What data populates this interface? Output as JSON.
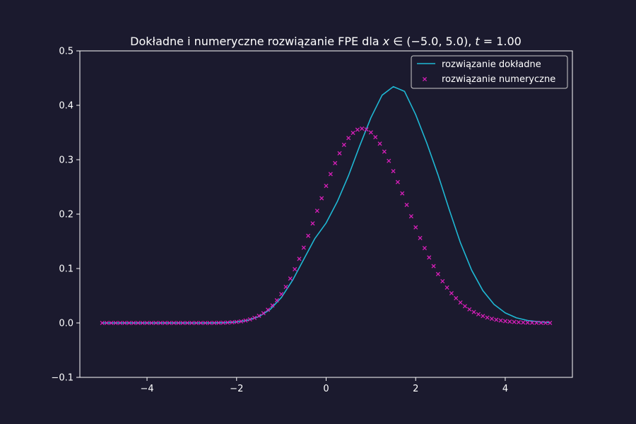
{
  "chart_data": {
    "type": "line",
    "title": "Dokładne i numeryczne rozwiązanie FPE dla x ∈ (−5.0, 5.0), t = 1.00",
    "title_parts": {
      "prefix": "Dokładne i numeryczne rozwiązanie FPE dla ",
      "var_x": "x",
      "mid": " ∈ (−5.0, 5.0), ",
      "var_t": "t",
      "suffix": " = 1.00"
    },
    "xlabel": "",
    "ylabel": "",
    "xlim": [
      -5.5,
      5.5
    ],
    "ylim": [
      -0.1,
      0.5
    ],
    "x_ticks": [
      -4,
      -2,
      0,
      2,
      4
    ],
    "x_tick_labels": [
      "−4",
      "−2",
      "0",
      "2",
      "4"
    ],
    "y_ticks": [
      -0.1,
      0.0,
      0.1,
      0.2,
      0.3,
      0.4,
      0.5
    ],
    "y_tick_labels": [
      "−0.1",
      "0.0",
      "0.1",
      "0.2",
      "0.3",
      "0.4",
      "0.5"
    ],
    "grid": false,
    "legend_position": "top-right",
    "series": [
      {
        "name": "rozwiązanie dokładne",
        "kind": "line",
        "color": "#1fb8d4",
        "x": [
          -5.0,
          -4.75,
          -4.5,
          -4.25,
          -4.0,
          -3.75,
          -3.5,
          -3.25,
          -3.0,
          -2.75,
          -2.5,
          -2.25,
          -2.0,
          -1.75,
          -1.5,
          -1.25,
          -1.0,
          -0.75,
          -0.5,
          -0.25,
          0.0,
          0.25,
          0.5,
          0.75,
          1.0,
          1.25,
          1.5,
          1.75,
          2.0,
          2.25,
          2.5,
          2.75,
          3.0,
          3.25,
          3.5,
          3.75,
          4.0,
          4.25,
          4.5,
          4.75,
          5.0
        ],
        "y": [
          0.0,
          0.0,
          0.0,
          0.0,
          0.0,
          0.0,
          0.0,
          0.0,
          0.0,
          0.0,
          0.0001,
          0.0006,
          0.0018,
          0.0049,
          0.0117,
          0.0248,
          0.0467,
          0.0783,
          0.1169,
          0.1553,
          0.1837,
          0.223,
          0.2708,
          0.3254,
          0.3772,
          0.4186,
          0.4343,
          0.4257,
          0.3829,
          0.3302,
          0.272,
          0.2081,
          0.1473,
          0.097,
          0.0595,
          0.0341,
          0.0185,
          0.0094,
          0.0045,
          0.002,
          0.0008
        ]
      },
      {
        "name": "rozwiązanie numeryczne",
        "kind": "scatter",
        "marker": "x",
        "color": "#d61fb8",
        "x": [
          -5.0,
          -4.9,
          -4.8,
          -4.7,
          -4.6,
          -4.5,
          -4.4,
          -4.3,
          -4.2,
          -4.1,
          -4.0,
          -3.9,
          -3.8,
          -3.7,
          -3.6,
          -3.5,
          -3.4,
          -3.3,
          -3.2,
          -3.1,
          -3.0,
          -2.9,
          -2.8,
          -2.7,
          -2.6,
          -2.5,
          -2.4,
          -2.3,
          -2.2,
          -2.1,
          -2.0,
          -1.9,
          -1.8,
          -1.7,
          -1.6,
          -1.5,
          -1.4,
          -1.3,
          -1.2,
          -1.1,
          -1.0,
          -0.9,
          -0.8,
          -0.7,
          -0.6,
          -0.5,
          -0.4,
          -0.3,
          -0.2,
          -0.1,
          0.0,
          0.1,
          0.2,
          0.3,
          0.4,
          0.5,
          0.6,
          0.7,
          0.8,
          0.9,
          1.0,
          1.1,
          1.2,
          1.3,
          1.4,
          1.5,
          1.6,
          1.7,
          1.8,
          1.9,
          2.0,
          2.1,
          2.2,
          2.3,
          2.4,
          2.5,
          2.6,
          2.7,
          2.8,
          2.9,
          3.0,
          3.1,
          3.2,
          3.3,
          3.4,
          3.5,
          3.6,
          3.7,
          3.8,
          3.9,
          4.0,
          4.1,
          4.2,
          4.3,
          4.4,
          4.5,
          4.6,
          4.7,
          4.8,
          4.9,
          5.0
        ],
        "y": [
          0.0,
          0.0,
          0.0,
          0.0,
          0.0,
          0.0,
          0.0,
          0.0,
          0.0,
          0.0,
          0.0,
          0.0,
          0.0,
          0.0,
          0.0,
          0.0,
          0.0,
          0.0,
          0.0,
          0.0,
          0.0,
          0.0,
          0.0,
          0.0,
          0.0,
          0.0001,
          0.0002,
          0.0004,
          0.0007,
          0.0012,
          0.0019,
          0.0029,
          0.0044,
          0.0065,
          0.0093,
          0.0131,
          0.018,
          0.0243,
          0.0321,
          0.0416,
          0.053,
          0.0663,
          0.0816,
          0.0988,
          0.1178,
          0.1384,
          0.1602,
          0.1829,
          0.2061,
          0.2292,
          0.2519,
          0.2736,
          0.2937,
          0.3118,
          0.3273,
          0.3399,
          0.3493,
          0.3551,
          0.3572,
          0.3556,
          0.3502,
          0.3414,
          0.3295,
          0.3148,
          0.2978,
          0.279,
          0.2589,
          0.2381,
          0.217,
          0.1961,
          0.1757,
          0.1561,
          0.1376,
          0.1203,
          0.1044,
          0.0898,
          0.0767,
          0.065,
          0.0546,
          0.0455,
          0.0376,
          0.0308,
          0.025,
          0.0201,
          0.016,
          0.0127,
          0.0099,
          0.0077,
          0.0059,
          0.0045,
          0.0034,
          0.0025,
          0.0018,
          0.0013,
          0.0009,
          0.0006,
          0.0004,
          0.0003,
          0.0002,
          0.0001,
          0.0001
        ]
      }
    ]
  }
}
